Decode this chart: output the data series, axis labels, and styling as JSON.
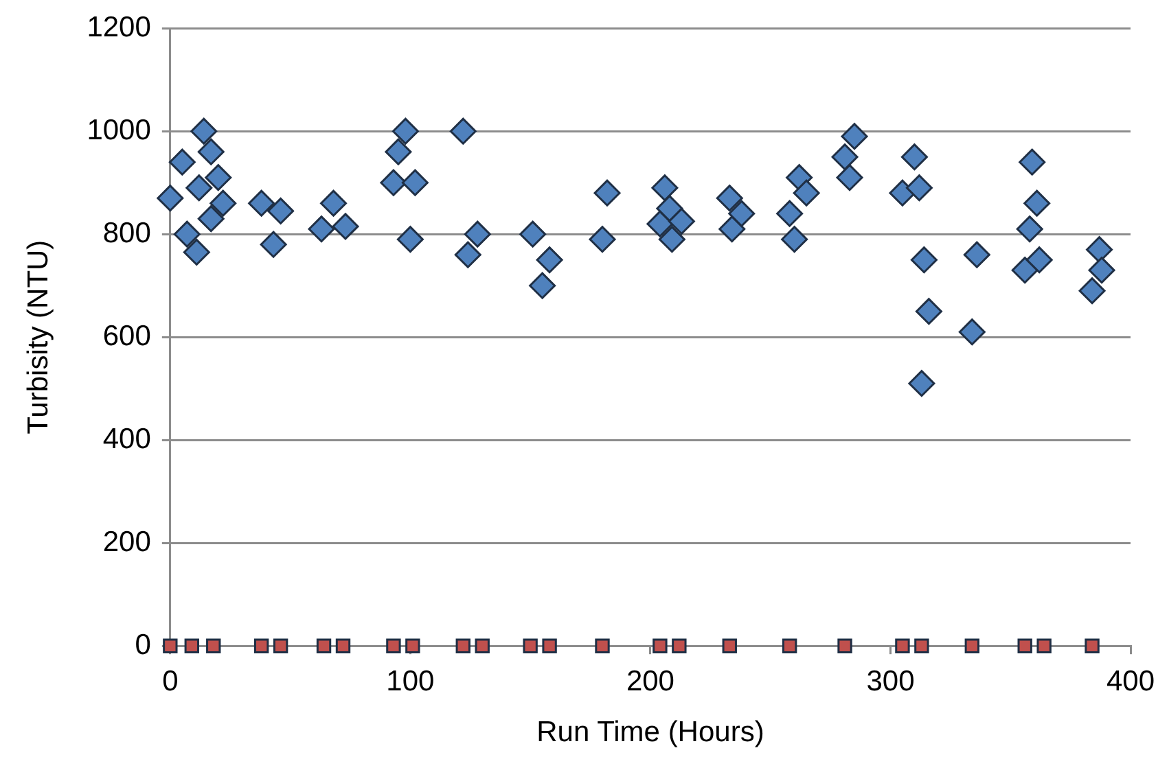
{
  "chart_data": {
    "type": "scatter",
    "xlabel": "Run Time (Hours)",
    "ylabel": "Turbisity (NTU)",
    "xlim": [
      0,
      400
    ],
    "xticks": [
      0,
      100,
      200,
      300,
      400
    ],
    "ylim": [
      0,
      1200
    ],
    "yticks": [
      0,
      200,
      400,
      600,
      800,
      1000,
      1200
    ],
    "grid": "y",
    "legend": false,
    "series": [
      {
        "color": "#4f81bd",
        "marker": "diamond",
        "x": [
          0,
          5,
          7,
          11,
          12,
          14,
          17,
          17,
          20,
          22,
          38,
          43,
          46,
          63,
          68,
          73,
          93,
          95,
          98,
          100,
          102,
          122,
          124,
          128,
          151,
          155,
          158,
          180,
          182,
          204,
          206,
          208,
          209,
          213,
          233,
          234,
          238,
          258,
          260,
          262,
          265,
          281,
          283,
          285,
          305,
          310,
          312,
          313,
          314,
          316,
          334,
          336,
          356,
          358,
          359,
          361,
          362,
          384,
          387,
          388
        ],
        "values": [
          870,
          940,
          800,
          765,
          890,
          1000,
          960,
          830,
          910,
          860,
          860,
          780,
          845,
          810,
          860,
          815,
          900,
          960,
          1000,
          790,
          900,
          1000,
          760,
          800,
          800,
          700,
          750,
          790,
          880,
          820,
          890,
          850,
          790,
          825,
          870,
          810,
          840,
          840,
          790,
          910,
          880,
          950,
          910,
          990,
          880,
          950,
          890,
          510,
          750,
          650,
          610,
          760,
          730,
          810,
          940,
          860,
          750,
          690,
          770,
          730
        ]
      },
      {
        "color": "#c0504d",
        "marker": "square",
        "x": [
          0,
          9,
          18,
          38,
          46,
          64,
          72,
          93,
          101,
          122,
          130,
          150,
          158,
          180,
          204,
          212,
          233,
          258,
          281,
          305,
          313,
          334,
          356,
          364,
          384
        ],
        "values": [
          0,
          0,
          0,
          0,
          0,
          0,
          0,
          0,
          0,
          0,
          0,
          0,
          0,
          0,
          0,
          0,
          0,
          0,
          0,
          0,
          0,
          0,
          0,
          0,
          0
        ]
      }
    ]
  }
}
